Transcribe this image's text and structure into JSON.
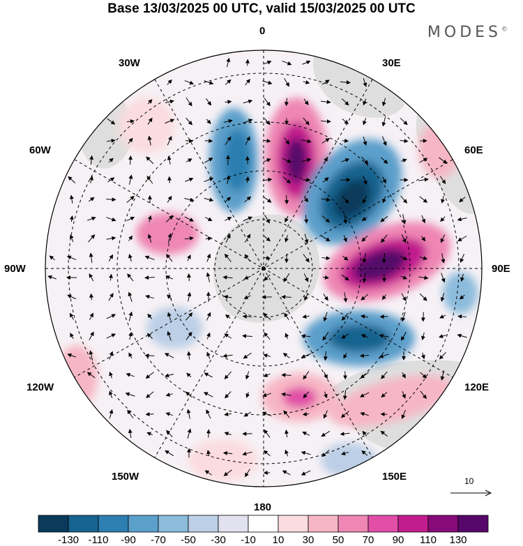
{
  "title": "Base 13/03/2025 00 UTC, valid 15/03/2025 00 UTC",
  "brand": "MODES",
  "brand_mark": "©",
  "longitude_labels": {
    "l0": "0",
    "l30e": "30E",
    "l60e": "60E",
    "l90e": "90E",
    "l120e": "120E",
    "l150e": "150E",
    "l180": "180",
    "l150w": "150W",
    "l120w": "120W",
    "l90w": "90W",
    "l60w": "60W",
    "l30w": "30W"
  },
  "reference_vector": "10",
  "colorbar": {
    "colors": [
      "#0b3a5c",
      "#16638f",
      "#2c7fb0",
      "#5b9fcb",
      "#8cbbdc",
      "#bccfe6",
      "#e2e1ef",
      "#ffffff",
      "#fbdcdf",
      "#f7b6c4",
      "#ef86b4",
      "#e04ea6",
      "#c21d8e",
      "#860b78",
      "#55086a"
    ],
    "tick_labels": [
      "-130",
      "-110",
      "-90",
      "-70",
      "-50",
      "-30",
      "-10",
      "10",
      "30",
      "50",
      "70",
      "90",
      "110",
      "130"
    ]
  },
  "icons": {
    "reference-arrow": "arrow-right-icon",
    "pole": "pole-marker"
  }
}
